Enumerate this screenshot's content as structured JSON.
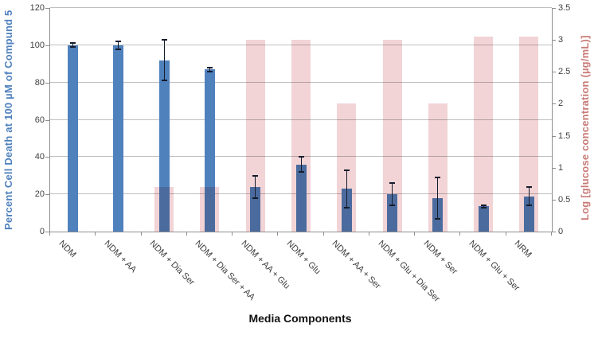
{
  "chart_data": {
    "type": "bar",
    "xlabel": "Media Components",
    "categories": [
      "NDM",
      "NDM + AA",
      "NDM + Dia Ser",
      "NDM + Dia Ser + AA",
      "NDM + AA + Glu",
      "NDM + Glu",
      "NDM + AA + Ser",
      "NDM + Glu + Dia Ser",
      "NDM + Ser",
      "NDM + Glu + Ser",
      "NRM"
    ],
    "series": [
      {
        "name": "Percent Cell Death at 100 µM of Compund 5",
        "axis": "left",
        "color": "#4f81bd",
        "values": [
          100,
          100,
          92,
          87,
          24,
          36,
          23,
          20,
          18,
          13.5,
          19
        ],
        "error_bars": [
          1,
          2,
          11,
          1,
          6,
          4,
          10,
          6,
          11,
          0.5,
          5
        ]
      },
      {
        "name": "Log [glucose concentration (µg/mL)]",
        "axis": "right",
        "color": "#f2d4d6",
        "values": [
          null,
          null,
          0.7,
          0.7,
          3,
          3,
          2,
          3,
          2,
          3.05,
          3.05
        ]
      }
    ],
    "left_axis": {
      "label": "Percent Cell Death at 100 µM of Compund 5",
      "min": 0,
      "max": 120,
      "tick_labels": [
        "0",
        "20",
        "40",
        "60",
        "80",
        "100",
        "120"
      ],
      "color": "#4f81bd"
    },
    "right_axis": {
      "label": "Log [glucose concentration (µg/mL)]",
      "min": 0,
      "max": 3.5,
      "tick_labels": [
        "0",
        "0.5",
        "1",
        "1.5",
        "2",
        "2.5",
        "3",
        "3.5"
      ],
      "color": "#c97b77"
    },
    "grid": true,
    "legend": false,
    "error_color": "#151c2c",
    "gridline_color": "#bfbfbf",
    "axisline_color": "#8e8e8e"
  }
}
